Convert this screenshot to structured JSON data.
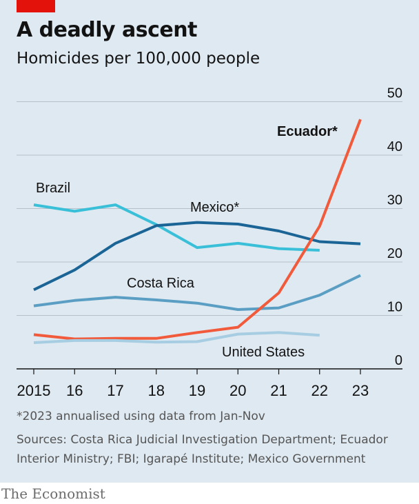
{
  "header": {
    "title": "A deadly ascent",
    "subtitle": "Homicides per 100,000 people"
  },
  "footer": {
    "note": "*2023 annualised using data from Jan-Nov",
    "sources": "Sources: Costa Rica Judicial Investigation Department; Ecuador Interior Ministry; FBI; Igarapé Institute; Mexico Government",
    "brand": "The Economist"
  },
  "chart_data": {
    "type": "line",
    "x": [
      2015,
      2016,
      2017,
      2018,
      2019,
      2020,
      2021,
      2022,
      2023
    ],
    "x_tick_labels": [
      "2015",
      "16",
      "17",
      "18",
      "19",
      "20",
      "21",
      "22",
      "23"
    ],
    "y_ticks": [
      0,
      10,
      20,
      30,
      40,
      50
    ],
    "ylim": [
      0,
      50
    ],
    "grid": true,
    "series": [
      {
        "name": "Brazil",
        "color": "#39c0d8",
        "values": [
          30.7,
          29.5,
          30.7,
          27.0,
          22.7,
          23.5,
          22.5,
          22.2,
          null
        ]
      },
      {
        "name": "Mexico*",
        "color": "#1a6496",
        "values": [
          14.8,
          18.5,
          23.5,
          26.8,
          27.4,
          27.1,
          25.8,
          23.8,
          23.4
        ]
      },
      {
        "name": "Costa Rica",
        "color": "#5b9ec4",
        "values": [
          11.8,
          12.8,
          13.4,
          12.9,
          12.3,
          11.1,
          11.4,
          13.8,
          17.5
        ]
      },
      {
        "name": "Ecuador*",
        "color": "#f15a3b",
        "values": [
          6.4,
          5.6,
          5.7,
          5.7,
          6.8,
          7.8,
          14.2,
          26.7,
          46.7
        ]
      },
      {
        "name": "United States",
        "color": "#a6cde2",
        "values": [
          4.9,
          5.3,
          5.3,
          5.0,
          5.1,
          6.5,
          6.8,
          6.3,
          null
        ]
      }
    ]
  }
}
